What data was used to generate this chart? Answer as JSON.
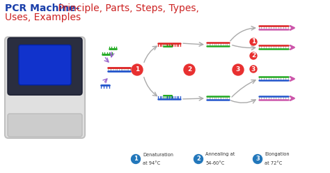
{
  "title_bold": "PCR Machine-",
  "title_bold_color": "#1a3faa",
  "title_regular": " Principle, Parts, Steps, Types,",
  "title_line2": "Uses, Examples",
  "title_regular_color": "#cc2222",
  "step_labels": [
    {
      "num": "1",
      "line1": "Denaturation",
      "line2": "at 94°C"
    },
    {
      "num": "2",
      "line1": "Annealing at",
      "line2": "54-60°C"
    },
    {
      "num": "3",
      "line1": "Elongation",
      "line2": "at 72°C"
    }
  ],
  "circle_color": "#2277bb",
  "step_circle_color": "#e83030",
  "red": "#dd2222",
  "blue": "#2255cc",
  "green": "#22aa22",
  "pink": "#cc55aa",
  "purple": "#9966cc",
  "gray_arrow": "#aaaaaa"
}
